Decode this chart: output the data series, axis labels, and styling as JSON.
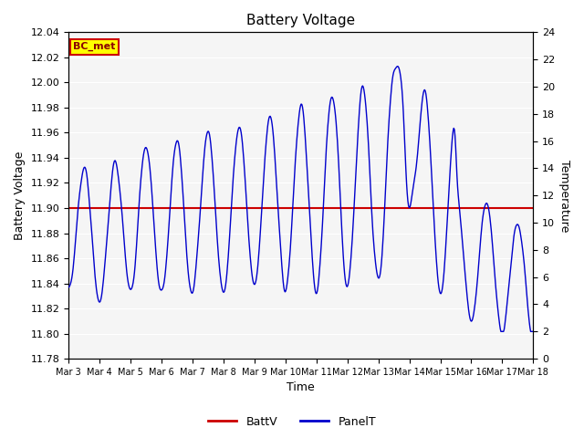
{
  "title": "Battery Voltage",
  "xlabel": "Time",
  "ylabel_left": "Battery Voltage",
  "ylabel_right": "Temperature",
  "ylim_left": [
    11.78,
    12.04
  ],
  "ylim_right": [
    0,
    24
  ],
  "yticks_left": [
    11.78,
    11.8,
    11.82,
    11.84,
    11.86,
    11.88,
    11.9,
    11.92,
    11.94,
    11.96,
    11.98,
    12.0,
    12.02,
    12.04
  ],
  "yticks_right": [
    0,
    2,
    4,
    6,
    8,
    10,
    12,
    14,
    16,
    18,
    20,
    22,
    24
  ],
  "batt_v_value": 11.9,
  "batt_color": "#cc0000",
  "panel_color": "#0000cc",
  "bg_color": "#e8e8e8",
  "plot_bg": "#f5f5f5",
  "annotation_text": "BC_met",
  "annotation_bg": "#ffff00",
  "annotation_border": "#cc0000",
  "legend_batt": "BattV",
  "legend_panel": "PanelT",
  "x_tick_labels": [
    "Mar 3",
    "Mar 4",
    "Mar 5",
    "Mar 6",
    "Mar 7",
    "Mar 8",
    "Mar 9",
    "Mar 10",
    "Mar 11",
    "Mar 12",
    "Mar 13",
    "Mar 14",
    "Mar 15",
    "Mar 16",
    "Mar 17",
    "Mar 18"
  ],
  "num_days": 15,
  "figwidth": 6.4,
  "figheight": 4.8,
  "dpi": 100
}
